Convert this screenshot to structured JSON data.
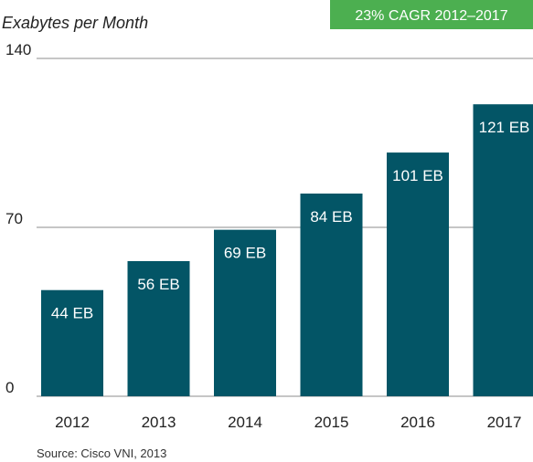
{
  "chart_data": {
    "type": "bar",
    "ylabel": "Exabytes per Month",
    "categories": [
      "2012",
      "2013",
      "2014",
      "2015",
      "2016",
      "2017"
    ],
    "values": [
      44,
      56,
      69,
      84,
      101,
      121
    ],
    "data_labels": [
      "44 EB",
      "56 EB",
      "69 EB",
      "84 EB",
      "101 EB",
      "121 EB"
    ],
    "ylim": [
      0,
      140
    ],
    "yticks": [
      0,
      70,
      140
    ],
    "ytick_labels": [
      "0",
      "70",
      "140"
    ],
    "grid": true,
    "annotation": "23% CAGR 2012–2017",
    "source": "Source: Cisco VNI, 2013",
    "colors": {
      "bar": "#035566",
      "annotation_bg": "#4caf50",
      "grid": "#8c8c8c"
    }
  }
}
